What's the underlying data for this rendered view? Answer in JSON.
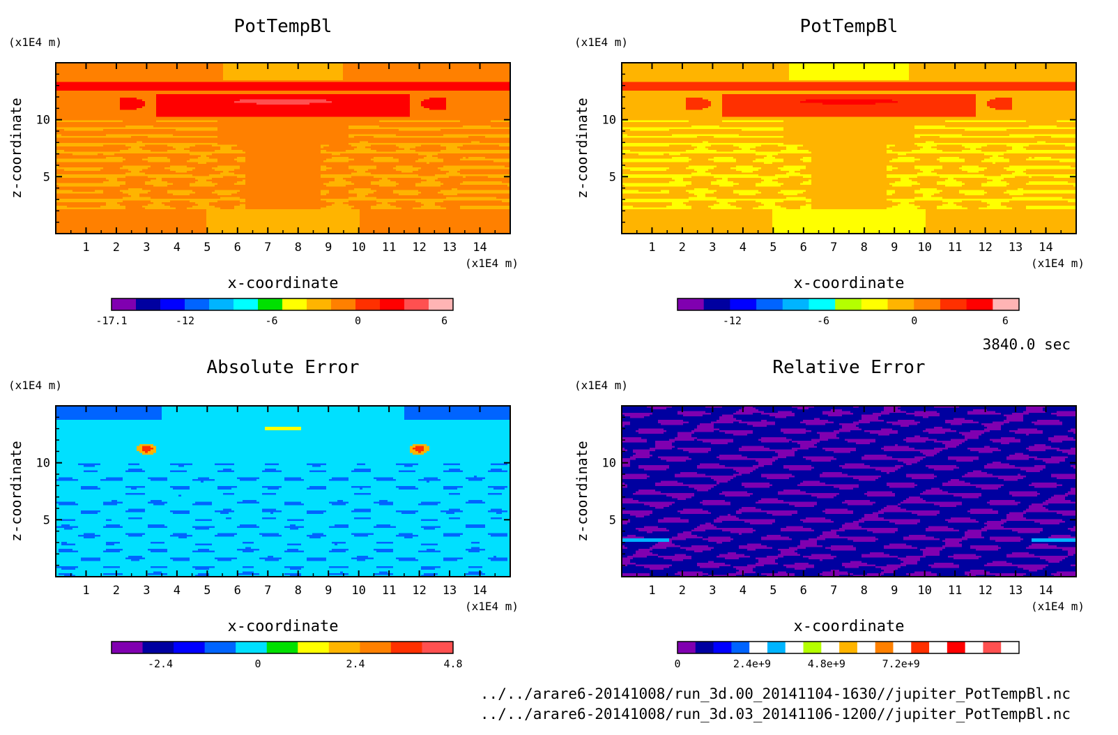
{
  "time_label": "3840.0 sec",
  "files": [
    "../../arare6-20141008/run_3d.00_20141104-1630//jupiter_PotTempBl.nc",
    "../../arare6-20141008/run_3d.03_20141106-1200//jupiter_PotTempBl.nc"
  ],
  "chart_data": [
    {
      "type": "heatmap",
      "title": "PotTempBl",
      "xlabel": "x-coordinate",
      "ylabel": "z-coordinate",
      "x_unit": "(x1E4 m)",
      "y_unit": "(x1E4 m)",
      "x_ticks": [
        1,
        2,
        3,
        4,
        5,
        6,
        7,
        8,
        9,
        10,
        11,
        12,
        13,
        14
      ],
      "y_ticks": [
        5,
        10
      ],
      "xlim": [
        0,
        15
      ],
      "ylim": [
        0,
        15
      ],
      "colorbar": {
        "min": -17.1,
        "max": 6.6,
        "tick_labels": [
          "-17.1",
          "-12",
          "-6",
          "0",
          "6"
        ],
        "tick_values": [
          -17.1,
          -12,
          -6,
          0,
          6
        ],
        "colors": [
          "#8000b0",
          "#0000a0",
          "#0000ff",
          "#0064ff",
          "#00b4ff",
          "#00ffff",
          "#00e000",
          "#ffff00",
          "#ffb400",
          "#ff8000",
          "#ff3000",
          "#ff0000",
          "#ff5050",
          "#ffb4b4"
        ]
      },
      "field_style": "pottemp_a"
    },
    {
      "type": "heatmap",
      "title": "PotTempBl",
      "xlabel": "x-coordinate",
      "ylabel": "z-coordinate",
      "x_unit": "(x1E4 m)",
      "y_unit": "(x1E4 m)",
      "x_ticks": [
        1,
        2,
        3,
        4,
        5,
        6,
        7,
        8,
        9,
        10,
        11,
        12,
        13,
        14
      ],
      "y_ticks": [
        5,
        10
      ],
      "xlim": [
        0,
        15
      ],
      "ylim": [
        0,
        15
      ],
      "colorbar": {
        "min": -15.6,
        "max": 6.9,
        "tick_labels": [
          "-12",
          "-6",
          "0",
          "6"
        ],
        "tick_values": [
          -12,
          -6,
          0,
          6
        ],
        "colors": [
          "#8000b0",
          "#0000a0",
          "#0000ff",
          "#0064ff",
          "#00b4ff",
          "#00ffff",
          "#b4ff00",
          "#ffff00",
          "#ffb400",
          "#ff8000",
          "#ff3000",
          "#ff0000",
          "#ffb4b4"
        ]
      },
      "field_style": "pottemp_b"
    },
    {
      "type": "heatmap",
      "title": "Absolute Error",
      "xlabel": "x-coordinate",
      "ylabel": "z-coordinate",
      "x_unit": "(x1E4 m)",
      "y_unit": "(x1E4 m)",
      "x_ticks": [
        1,
        2,
        3,
        4,
        5,
        6,
        7,
        8,
        9,
        10,
        11,
        12,
        13,
        14
      ],
      "y_ticks": [
        5,
        10
      ],
      "xlim": [
        0,
        15
      ],
      "ylim": [
        0,
        15
      ],
      "colorbar": {
        "min": -3.6,
        "max": 4.8,
        "tick_labels": [
          "-2.4",
          "0",
          "2.4",
          "4.8"
        ],
        "tick_values": [
          -2.4,
          0,
          2.4,
          4.8
        ],
        "colors": [
          "#8000b0",
          "#0000a0",
          "#0000ff",
          "#0064ff",
          "#00e0ff",
          "#00e000",
          "#ffff00",
          "#ffb400",
          "#ff8000",
          "#ff3000",
          "#ff5050"
        ]
      },
      "field_style": "abs_error"
    },
    {
      "type": "heatmap",
      "title": "Relative Error",
      "xlabel": "x-coordinate",
      "ylabel": "z-coordinate",
      "x_unit": "(x1E4 m)",
      "y_unit": "(x1E4 m)",
      "x_ticks": [
        1,
        2,
        3,
        4,
        5,
        6,
        7,
        8,
        9,
        10,
        11,
        12,
        13,
        14
      ],
      "y_ticks": [
        5,
        10
      ],
      "xlim": [
        0,
        15
      ],
      "ylim": [
        0,
        15
      ],
      "colorbar": {
        "min": 0,
        "max": 11000000000.0,
        "tick_labels": [
          "0",
          "2.4e+9",
          "4.8e+9",
          "7.2e+9"
        ],
        "tick_values": [
          0,
          2400000000.0,
          4800000000.0,
          7200000000.0
        ],
        "colors": [
          "#8000b0",
          "#0000a0",
          "#0000ff",
          "#0064ff",
          "#ffffff",
          "#00b4ff",
          "#ffffff",
          "#b4ff00",
          "#ffffff",
          "#ffb400",
          "#ffffff",
          "#ff8000",
          "#ffffff",
          "#ff3000",
          "#ffffff",
          "#ff0000",
          "#ffffff",
          "#ff5050",
          "#ffffff"
        ]
      },
      "field_style": "rel_error"
    }
  ]
}
